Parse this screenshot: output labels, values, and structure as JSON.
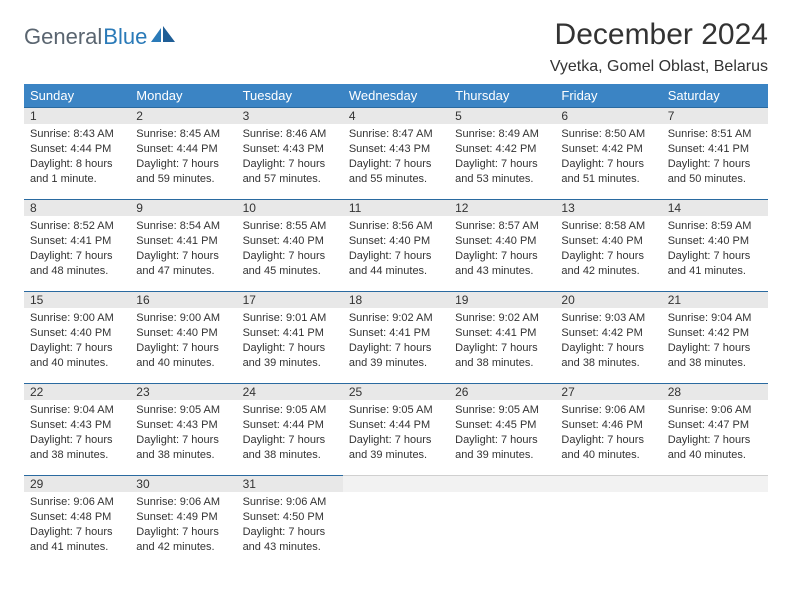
{
  "brand": {
    "part1": "General",
    "part2": "Blue"
  },
  "title": "December 2024",
  "location": "Vyetka, Gomel Oblast, Belarus",
  "colors": {
    "header_bg": "#3b84c4",
    "header_text": "#ffffff",
    "daynum_bg": "#e8e8e8",
    "daynum_border": "#2a6aa0",
    "text": "#333333",
    "brand_gray": "#5a6570",
    "brand_blue": "#2a7ab8"
  },
  "weekdays": [
    "Sunday",
    "Monday",
    "Tuesday",
    "Wednesday",
    "Thursday",
    "Friday",
    "Saturday"
  ],
  "days": [
    {
      "n": "1",
      "sr": "8:43 AM",
      "ss": "4:44 PM",
      "dl": "8 hours and 1 minute."
    },
    {
      "n": "2",
      "sr": "8:45 AM",
      "ss": "4:44 PM",
      "dl": "7 hours and 59 minutes."
    },
    {
      "n": "3",
      "sr": "8:46 AM",
      "ss": "4:43 PM",
      "dl": "7 hours and 57 minutes."
    },
    {
      "n": "4",
      "sr": "8:47 AM",
      "ss": "4:43 PM",
      "dl": "7 hours and 55 minutes."
    },
    {
      "n": "5",
      "sr": "8:49 AM",
      "ss": "4:42 PM",
      "dl": "7 hours and 53 minutes."
    },
    {
      "n": "6",
      "sr": "8:50 AM",
      "ss": "4:42 PM",
      "dl": "7 hours and 51 minutes."
    },
    {
      "n": "7",
      "sr": "8:51 AM",
      "ss": "4:41 PM",
      "dl": "7 hours and 50 minutes."
    },
    {
      "n": "8",
      "sr": "8:52 AM",
      "ss": "4:41 PM",
      "dl": "7 hours and 48 minutes."
    },
    {
      "n": "9",
      "sr": "8:54 AM",
      "ss": "4:41 PM",
      "dl": "7 hours and 47 minutes."
    },
    {
      "n": "10",
      "sr": "8:55 AM",
      "ss": "4:40 PM",
      "dl": "7 hours and 45 minutes."
    },
    {
      "n": "11",
      "sr": "8:56 AM",
      "ss": "4:40 PM",
      "dl": "7 hours and 44 minutes."
    },
    {
      "n": "12",
      "sr": "8:57 AM",
      "ss": "4:40 PM",
      "dl": "7 hours and 43 minutes."
    },
    {
      "n": "13",
      "sr": "8:58 AM",
      "ss": "4:40 PM",
      "dl": "7 hours and 42 minutes."
    },
    {
      "n": "14",
      "sr": "8:59 AM",
      "ss": "4:40 PM",
      "dl": "7 hours and 41 minutes."
    },
    {
      "n": "15",
      "sr": "9:00 AM",
      "ss": "4:40 PM",
      "dl": "7 hours and 40 minutes."
    },
    {
      "n": "16",
      "sr": "9:00 AM",
      "ss": "4:40 PM",
      "dl": "7 hours and 40 minutes."
    },
    {
      "n": "17",
      "sr": "9:01 AM",
      "ss": "4:41 PM",
      "dl": "7 hours and 39 minutes."
    },
    {
      "n": "18",
      "sr": "9:02 AM",
      "ss": "4:41 PM",
      "dl": "7 hours and 39 minutes."
    },
    {
      "n": "19",
      "sr": "9:02 AM",
      "ss": "4:41 PM",
      "dl": "7 hours and 38 minutes."
    },
    {
      "n": "20",
      "sr": "9:03 AM",
      "ss": "4:42 PM",
      "dl": "7 hours and 38 minutes."
    },
    {
      "n": "21",
      "sr": "9:04 AM",
      "ss": "4:42 PM",
      "dl": "7 hours and 38 minutes."
    },
    {
      "n": "22",
      "sr": "9:04 AM",
      "ss": "4:43 PM",
      "dl": "7 hours and 38 minutes."
    },
    {
      "n": "23",
      "sr": "9:05 AM",
      "ss": "4:43 PM",
      "dl": "7 hours and 38 minutes."
    },
    {
      "n": "24",
      "sr": "9:05 AM",
      "ss": "4:44 PM",
      "dl": "7 hours and 38 minutes."
    },
    {
      "n": "25",
      "sr": "9:05 AM",
      "ss": "4:44 PM",
      "dl": "7 hours and 39 minutes."
    },
    {
      "n": "26",
      "sr": "9:05 AM",
      "ss": "4:45 PM",
      "dl": "7 hours and 39 minutes."
    },
    {
      "n": "27",
      "sr": "9:06 AM",
      "ss": "4:46 PM",
      "dl": "7 hours and 40 minutes."
    },
    {
      "n": "28",
      "sr": "9:06 AM",
      "ss": "4:47 PM",
      "dl": "7 hours and 40 minutes."
    },
    {
      "n": "29",
      "sr": "9:06 AM",
      "ss": "4:48 PM",
      "dl": "7 hours and 41 minutes."
    },
    {
      "n": "30",
      "sr": "9:06 AM",
      "ss": "4:49 PM",
      "dl": "7 hours and 42 minutes."
    },
    {
      "n": "31",
      "sr": "9:06 AM",
      "ss": "4:50 PM",
      "dl": "7 hours and 43 minutes."
    }
  ],
  "labels": {
    "sunrise": "Sunrise:",
    "sunset": "Sunset:",
    "daylight": "Daylight:"
  },
  "layout": {
    "first_weekday_index": 0,
    "columns": 7,
    "rows": 5,
    "trailing_empty": 4
  }
}
